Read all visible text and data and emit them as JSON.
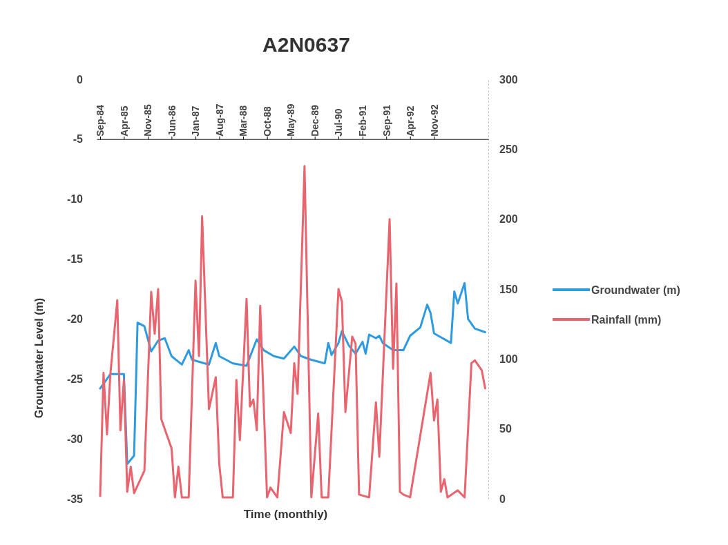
{
  "chart_data": {
    "type": "line",
    "title": "A2N0637",
    "xlabel": "Time (monthly)",
    "ylabel": "Groundwater Level (m)",
    "xlim": [
      "1984-08",
      "1994-03"
    ],
    "xticks": [
      {
        "value": "1984-09",
        "label": "Sep-84"
      },
      {
        "value": "1985-04",
        "label": "Apr-85"
      },
      {
        "value": "1985-11",
        "label": "Nov-85"
      },
      {
        "value": "1986-06",
        "label": "Jun-86"
      },
      {
        "value": "1987-01",
        "label": "Jan-87"
      },
      {
        "value": "1987-08",
        "label": "Aug-87"
      },
      {
        "value": "1988-03",
        "label": "Mar-88"
      },
      {
        "value": "1988-10",
        "label": "Oct-88"
      },
      {
        "value": "1989-05",
        "label": "May-89"
      },
      {
        "value": "1989-12",
        "label": "Dec-89"
      },
      {
        "value": "1990-07",
        "label": "Jul-90"
      },
      {
        "value": "1991-02",
        "label": "Feb-91"
      },
      {
        "value": "1991-09",
        "label": "Sep-91"
      },
      {
        "value": "1992-04",
        "label": "Apr-92"
      },
      {
        "value": "1992-11",
        "label": "Nov-92"
      }
    ],
    "ylim": [
      -35,
      0
    ],
    "yticks": [
      -35,
      -30,
      -25,
      -20,
      -15,
      -10,
      -5,
      0
    ],
    "y2lim": [
      0,
      300
    ],
    "y2ticks": [
      0,
      50,
      100,
      150,
      200,
      250,
      300
    ],
    "grid": false,
    "legend": "right",
    "marker": "none",
    "line_style": "solid",
    "series": [
      {
        "name": "Groundwater (m)",
        "color": "#2e9be0",
        "x": [
          "1984-09",
          "1984-12",
          "1985-04",
          "1985-05",
          "1985-07",
          "1985-08",
          "1985-10",
          "1985-12",
          "1986-02",
          "1986-04",
          "1986-06",
          "1986-09",
          "1986-11",
          "1986-12",
          "1987-05",
          "1987-07",
          "1987-08",
          "1987-12",
          "1988-04",
          "1988-07",
          "1988-09",
          "1988-12",
          "1989-03",
          "1989-06",
          "1989-08",
          "1989-11",
          "1990-03",
          "1990-04",
          "1990-05",
          "1990-07",
          "1990-08",
          "1990-10",
          "1990-12",
          "1991-02",
          "1991-03",
          "1991-04",
          "1991-06",
          "1991-07",
          "1991-08",
          "1991-11",
          "1992-02",
          "1992-04",
          "1992-07",
          "1992-09",
          "1992-10",
          "1992-11",
          "1993-04",
          "1993-05",
          "1993-06",
          "1993-08",
          "1993-09",
          "1993-11",
          "1994-02"
        ],
        "values": [
          -25.8,
          -24.6,
          -24.6,
          -32.1,
          -31.4,
          -20.3,
          -20.6,
          -22.7,
          -21.8,
          -21.6,
          -23.1,
          -23.8,
          -22.6,
          -23.4,
          -23.8,
          -22.0,
          -23.1,
          -23.7,
          -23.9,
          -21.7,
          -22.6,
          -23.1,
          -23.3,
          -22.3,
          -23.1,
          -23.4,
          -23.7,
          -22.0,
          -23.0,
          -22.0,
          -21.0,
          -22.2,
          -22.9,
          -21.9,
          -22.9,
          -21.3,
          -21.6,
          -21.4,
          -22.0,
          -22.6,
          -22.6,
          -21.4,
          -20.7,
          -18.8,
          -19.5,
          -21.2,
          -22.0,
          -17.7,
          -18.7,
          -17.0,
          -20.0,
          -20.8,
          -21.1
        ]
      },
      {
        "name": "Rainfall (mm)",
        "color": "#e8646e",
        "axis": "y2",
        "x": [
          "1984-09",
          "1984-10",
          "1984-11",
          "1984-12",
          "1985-02",
          "1985-03",
          "1985-04",
          "1985-05",
          "1985-06",
          "1985-07",
          "1985-10",
          "1985-12",
          "1986-01",
          "1986-02",
          "1986-03",
          "1986-06",
          "1986-07",
          "1986-08",
          "1986-09",
          "1986-11",
          "1987-01",
          "1987-02",
          "1987-03",
          "1987-05",
          "1987-07",
          "1987-08",
          "1987-09",
          "1987-12",
          "1988-01",
          "1988-02",
          "1988-04",
          "1988-05",
          "1988-06",
          "1988-07",
          "1988-08",
          "1988-10",
          "1988-11",
          "1989-01",
          "1989-03",
          "1989-05",
          "1989-06",
          "1989-07",
          "1989-09",
          "1989-11",
          "1990-01",
          "1990-02",
          "1990-04",
          "1990-07",
          "1990-08",
          "1990-09",
          "1990-11",
          "1990-12",
          "1991-01",
          "1991-04",
          "1991-06",
          "1991-07",
          "1991-10",
          "1991-11",
          "1991-12",
          "1992-01",
          "1992-02",
          "1992-04",
          "1992-10",
          "1992-11",
          "1992-12",
          "1993-01",
          "1993-02",
          "1993-03",
          "1993-06",
          "1993-08",
          "1993-10",
          "1993-11",
          "1994-01",
          "1994-02"
        ],
        "values": [
          2,
          90,
          46,
          89,
          142,
          49,
          85,
          5,
          23,
          4,
          20,
          148,
          118,
          150,
          57,
          36,
          1,
          23,
          1,
          1,
          156,
          102,
          202,
          64,
          87,
          25,
          1,
          1,
          85,
          42,
          143,
          66,
          71,
          49,
          138,
          1,
          8,
          1,
          62,
          47,
          97,
          75,
          238,
          1,
          61,
          1,
          1,
          150,
          141,
          62,
          116,
          111,
          3,
          1,
          69,
          30,
          200,
          93,
          154,
          5,
          3,
          1,
          90,
          56,
          71,
          5,
          14,
          1,
          6,
          1,
          97,
          99,
          92,
          79
        ]
      }
    ]
  }
}
